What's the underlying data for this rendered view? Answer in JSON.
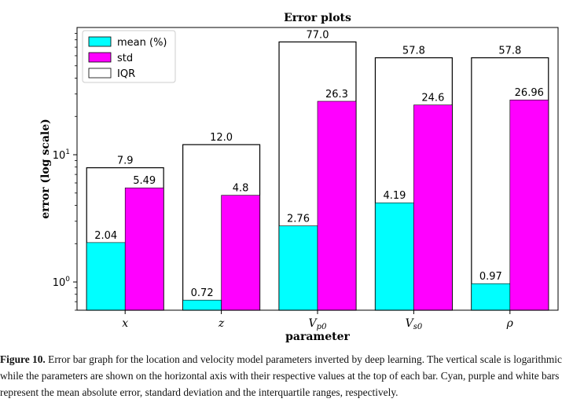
{
  "chart_data": {
    "type": "bar",
    "title": "Error plots",
    "xlabel": "parameter",
    "ylabel": "error (log scale)",
    "yscale": "log",
    "ylim": [
      0.6,
      100
    ],
    "yticks": [
      1,
      10
    ],
    "ytick_labels": [
      {
        "base": "10",
        "exp": "0"
      },
      {
        "base": "10",
        "exp": "1"
      }
    ],
    "categories": [
      {
        "base": "x",
        "sub": ""
      },
      {
        "base": "z",
        "sub": ""
      },
      {
        "base": "V",
        "sub": "p0"
      },
      {
        "base": "V",
        "sub": "s0"
      },
      {
        "base": "ρ",
        "sub": ""
      }
    ],
    "legend_position": "top-left",
    "series": [
      {
        "name": "mean (%)",
        "color": "#00ffff",
        "values": [
          2.04,
          0.72,
          2.76,
          4.19,
          0.97
        ],
        "labels": [
          "2.04",
          "0.72",
          "2.76",
          "4.19",
          "0.97"
        ]
      },
      {
        "name": "std",
        "color": "#ff00ff",
        "values": [
          5.49,
          4.8,
          26.3,
          24.6,
          26.96
        ],
        "labels": [
          "5.49",
          "4.8",
          "26.3",
          "24.6",
          "26.96"
        ]
      },
      {
        "name": "IQR",
        "color": "#ffffff",
        "values": [
          7.9,
          12.0,
          77.0,
          57.8,
          57.8
        ],
        "labels": [
          "7.9",
          "12.0",
          "77.0",
          "57.8",
          "57.8"
        ]
      }
    ]
  },
  "caption": {
    "label": "Figure 10.",
    "text": "Error bar graph for the location and velocity model parameters inverted by deep learning. The vertical scale is logarithmic while the parameters are shown on the horizontal axis with their respective values at the top of each bar. Cyan, purple and white bars represent the mean absolute error, standard deviation and the interquartile ranges, respectively."
  }
}
